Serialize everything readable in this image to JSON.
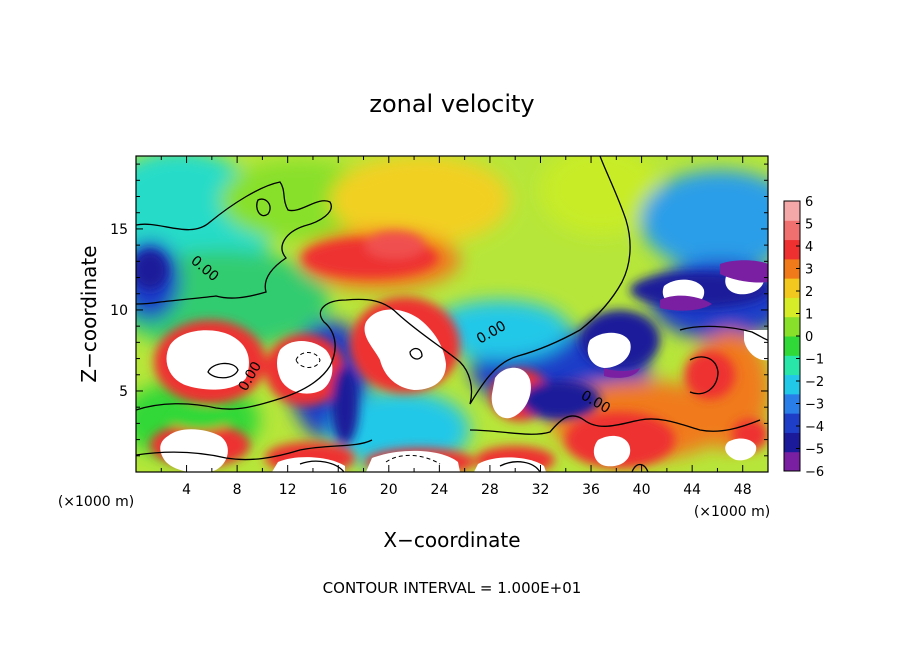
{
  "chart_data": {
    "type": "heatmap",
    "title": "zonal velocity",
    "xlabel": "X−coordinate",
    "ylabel": "Z−coordinate",
    "x_unit_left": "(×1000 m)",
    "x_unit_right": "(×1000 m)",
    "xlim": [
      0,
      50
    ],
    "ylim": [
      0,
      19.5
    ],
    "x_ticks": [
      4,
      8,
      12,
      16,
      20,
      24,
      28,
      32,
      36,
      40,
      44,
      48
    ],
    "y_ticks": [
      5,
      10,
      15
    ],
    "colorbar_ticks": [
      6,
      5,
      4,
      3,
      2,
      1,
      0,
      -1,
      -2,
      -3,
      -4,
      -5,
      -6
    ],
    "colorbar_range": [
      -6,
      6
    ],
    "colorscale": [
      "#7a1fa2",
      "#1a1a9a",
      "#1e3ec8",
      "#2a7ee8",
      "#22c8e8",
      "#28e6a8",
      "#30d838",
      "#88e02a",
      "#d6ec28",
      "#f2c81e",
      "#f07a1a",
      "#ee3030",
      "#f07070",
      "#f5a8a8"
    ],
    "contour_labels": [
      "0.00",
      "0.00",
      "0.00",
      "0.00"
    ],
    "footer": "CONTOUR INTERVAL = 1.000E+01"
  }
}
